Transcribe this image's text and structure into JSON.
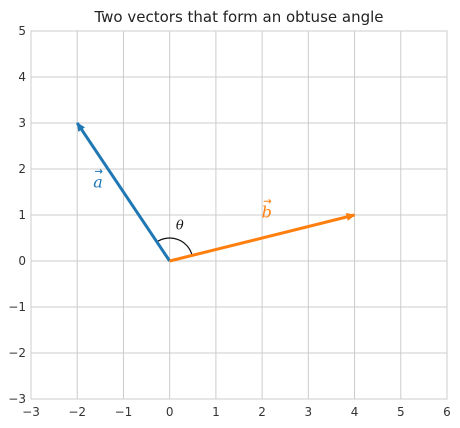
{
  "chart_data": {
    "type": "vector",
    "title": "Two vectors that form an obtuse angle",
    "xlabel": "",
    "ylabel": "",
    "xlim": [
      -3,
      6
    ],
    "ylim": [
      -3,
      5
    ],
    "xticks": [
      -3,
      -2,
      -1,
      0,
      1,
      2,
      3,
      4,
      5,
      6
    ],
    "yticks": [
      -3,
      -2,
      -1,
      0,
      1,
      2,
      3,
      4,
      5
    ],
    "xtick_labels": [
      "−3",
      "−2",
      "−1",
      "0",
      "1",
      "2",
      "3",
      "4",
      "5",
      "6"
    ],
    "ytick_labels": [
      "−3",
      "−2",
      "−1",
      "0",
      "1",
      "2",
      "3",
      "4",
      "5"
    ],
    "grid": true,
    "vectors": [
      {
        "label": "a",
        "origin": [
          0,
          0
        ],
        "tip": [
          -2,
          3
        ],
        "color": "#1f77b4",
        "label_at": [
          -1.55,
          1.6
        ]
      },
      {
        "label": "b",
        "origin": [
          0,
          0
        ],
        "tip": [
          4,
          1
        ],
        "color": "#ff7f0e",
        "label_at": [
          2.1,
          0.95
        ]
      }
    ],
    "angle": {
      "label": "θ",
      "between": [
        "b",
        "a"
      ],
      "radius": 0.5,
      "label_at": [
        0.22,
        0.68
      ]
    }
  }
}
